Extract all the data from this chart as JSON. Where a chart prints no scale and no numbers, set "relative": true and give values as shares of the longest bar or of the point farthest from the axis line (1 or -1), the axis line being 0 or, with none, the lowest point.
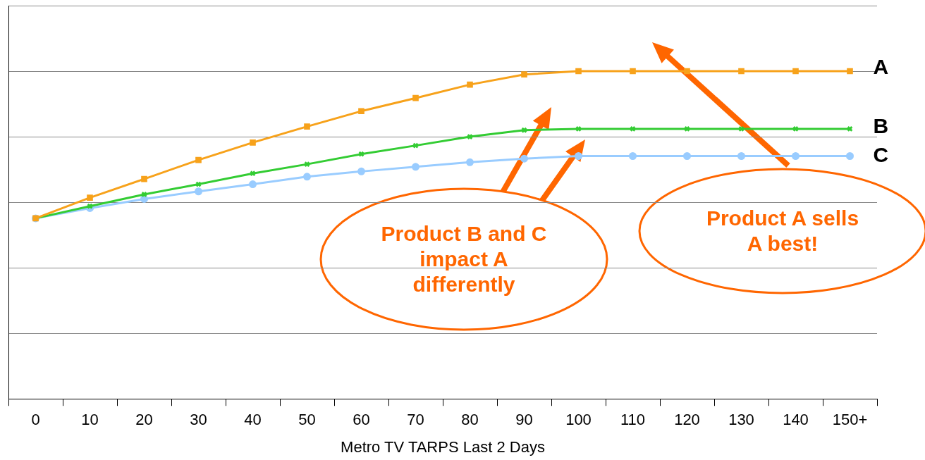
{
  "chart_data": {
    "type": "line",
    "relative": true,
    "xlabel": "Metro TV TARPS Last 2 Days",
    "categories": [
      "0",
      "10",
      "20",
      "30",
      "40",
      "50",
      "60",
      "70",
      "80",
      "90",
      "100",
      "110",
      "120",
      "130",
      "140",
      "150+"
    ],
    "series": [
      {
        "name": "A",
        "color": "#f7a21b",
        "marker": "square",
        "values": [
          0.551,
          0.614,
          0.671,
          0.729,
          0.782,
          0.831,
          0.878,
          0.918,
          0.959,
          0.99,
          1,
          1,
          1,
          1,
          1,
          1
        ]
      },
      {
        "name": "B",
        "color": "#33cc33",
        "marker": "cross",
        "values": [
          0.551,
          0.588,
          0.624,
          0.655,
          0.688,
          0.716,
          0.747,
          0.773,
          0.8,
          0.82,
          0.824,
          0.824,
          0.824,
          0.824,
          0.824,
          0.824
        ]
      },
      {
        "name": "C",
        "color": "#99ccff",
        "marker": "circle",
        "values": [
          0.551,
          0.582,
          0.61,
          0.633,
          0.655,
          0.678,
          0.694,
          0.708,
          0.722,
          0.733,
          0.741,
          0.741,
          0.741,
          0.741,
          0.741,
          0.741
        ]
      }
    ],
    "annotations": [
      "Product B and C impact A differently",
      "Product A sells A best!"
    ],
    "grid": "y",
    "legend": false
  }
}
